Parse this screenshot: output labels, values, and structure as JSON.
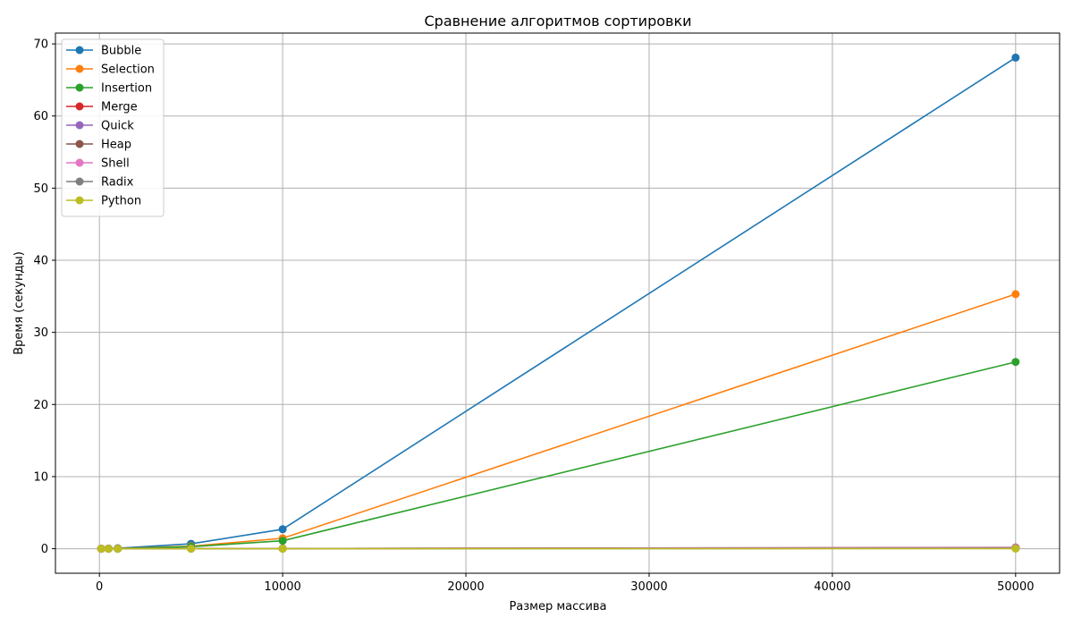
{
  "chart_data": {
    "type": "line",
    "title": "Сравнение алгоритмов сортировки",
    "xlabel": "Размер массива",
    "ylabel": "Время (секунды)",
    "xlim": [
      -2400,
      52400
    ],
    "ylim": [
      -3.4,
      71.5
    ],
    "x_ticks": [
      0,
      10000,
      20000,
      30000,
      40000,
      50000
    ],
    "y_ticks": [
      0,
      10,
      20,
      30,
      40,
      50,
      60,
      70
    ],
    "grid": true,
    "legend_position": "top-left",
    "x": [
      100,
      500,
      1000,
      5000,
      10000,
      50000
    ],
    "series": [
      {
        "name": "Bubble",
        "color": "#1f77b4",
        "values": [
          0.0,
          0.02,
          0.07,
          0.68,
          2.7,
          68.1
        ]
      },
      {
        "name": "Selection",
        "color": "#ff7f0e",
        "values": [
          0.0,
          0.01,
          0.04,
          0.35,
          1.45,
          35.3
        ]
      },
      {
        "name": "Insertion",
        "color": "#2ca02c",
        "values": [
          0.0,
          0.01,
          0.03,
          0.28,
          1.1,
          25.9
        ]
      },
      {
        "name": "Merge",
        "color": "#d62728",
        "values": [
          0.0,
          0.0,
          0.0,
          0.01,
          0.02,
          0.12
        ]
      },
      {
        "name": "Quick",
        "color": "#9467bd",
        "values": [
          0.0,
          0.0,
          0.0,
          0.01,
          0.01,
          0.08
        ]
      },
      {
        "name": "Heap",
        "color": "#8c564b",
        "values": [
          0.0,
          0.0,
          0.0,
          0.01,
          0.03,
          0.18
        ]
      },
      {
        "name": "Shell",
        "color": "#e377c2",
        "values": [
          0.0,
          0.0,
          0.0,
          0.01,
          0.02,
          0.15
        ]
      },
      {
        "name": "Radix",
        "color": "#7f7f7f",
        "values": [
          0.0,
          0.0,
          0.0,
          0.01,
          0.01,
          0.06
        ]
      },
      {
        "name": "Python",
        "color": "#bcbd22",
        "values": [
          0.0,
          0.0,
          0.0,
          0.0,
          0.0,
          0.01
        ]
      }
    ]
  }
}
